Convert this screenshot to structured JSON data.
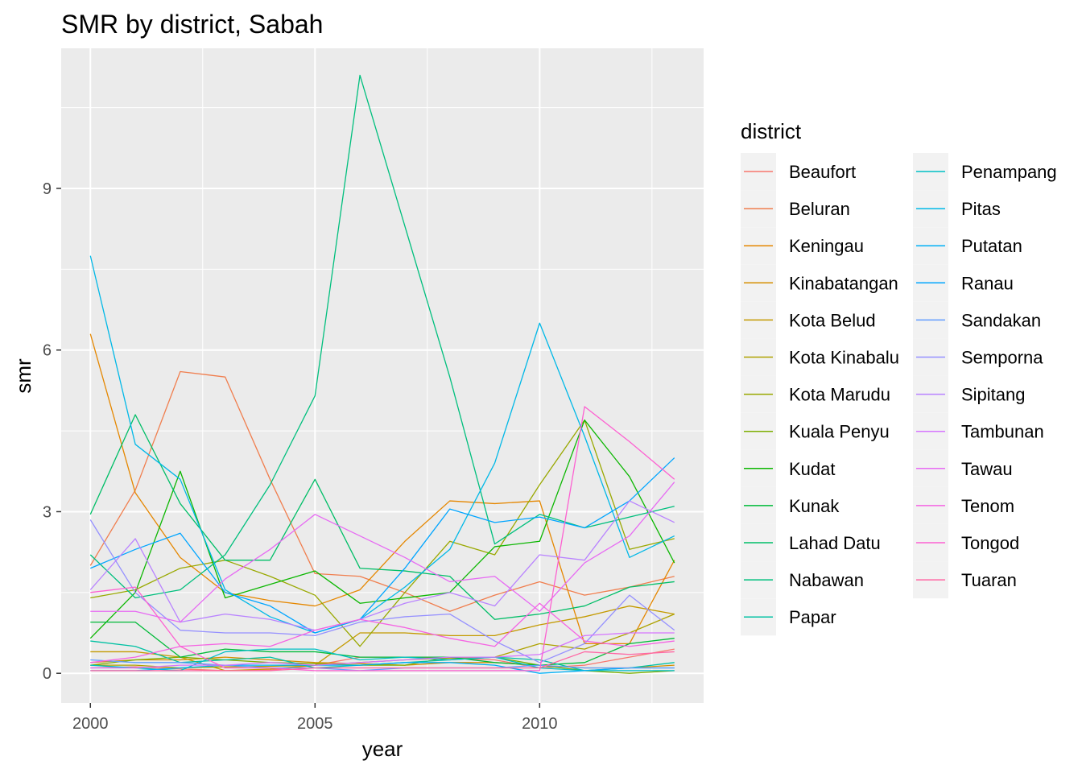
{
  "chart_data": {
    "type": "line",
    "title": "SMR by district, Sabah",
    "xlabel": "year",
    "ylabel": "smr",
    "xlim": [
      1999.35,
      2013.65
    ],
    "ylim": [
      -0.55,
      11.6
    ],
    "x_ticks": [
      2000,
      2005,
      2010
    ],
    "y_ticks": [
      0,
      3,
      6,
      9
    ],
    "grid": true,
    "legend": {
      "title": "district",
      "position": "right",
      "columns": 2
    },
    "x": [
      2000,
      2001,
      2002,
      2003,
      2004,
      2005,
      2006,
      2007,
      2008,
      2009,
      2010,
      2011,
      2012,
      2013
    ],
    "series": [
      {
        "name": "Beaufort",
        "color": "#F8766D",
        "values": [
          0.1,
          0.12,
          0.08,
          0.05,
          0.06,
          0.15,
          0.3,
          0.3,
          0.28,
          0.25,
          0.1,
          0.15,
          0.3,
          0.45
        ]
      },
      {
        "name": "Beluran",
        "color": "#F07E4E",
        "values": [
          2.0,
          3.4,
          5.6,
          5.5,
          3.6,
          1.85,
          1.8,
          1.5,
          1.15,
          1.45,
          1.7,
          1.45,
          1.6,
          1.8
        ]
      },
      {
        "name": "Keningau",
        "color": "#E58700",
        "values": [
          6.3,
          3.35,
          2.15,
          1.5,
          1.35,
          1.25,
          1.55,
          2.45,
          3.2,
          3.15,
          3.2,
          0.55,
          0.55,
          2.1
        ]
      },
      {
        "name": "Kinabatangan",
        "color": "#D58F00",
        "values": [
          0.2,
          0.25,
          0.25,
          0.3,
          0.25,
          0.2,
          0.18,
          0.15,
          0.2,
          0.2,
          0.15,
          0.1,
          0.1,
          0.15
        ]
      },
      {
        "name": "Kota Belud",
        "color": "#C49A00",
        "values": [
          0.4,
          0.4,
          0.3,
          0.05,
          0.08,
          0.15,
          0.75,
          0.75,
          0.7,
          0.7,
          0.9,
          1.05,
          1.25,
          1.1
        ]
      },
      {
        "name": "Kota Kinabalu",
        "color": "#AEA200",
        "values": [
          0.15,
          0.15,
          0.1,
          0.12,
          0.13,
          0.15,
          0.2,
          0.25,
          0.28,
          0.3,
          0.55,
          0.45,
          0.75,
          1.1
        ]
      },
      {
        "name": "Kota Marudu",
        "color": "#99A800",
        "values": [
          1.4,
          1.55,
          1.95,
          2.1,
          1.8,
          1.45,
          0.5,
          1.5,
          2.45,
          2.2,
          3.5,
          4.7,
          2.3,
          2.5
        ]
      },
      {
        "name": "Kuala Penyu",
        "color": "#7CAE00",
        "values": [
          0.15,
          0.25,
          0.3,
          0.25,
          0.2,
          0.18,
          0.15,
          0.15,
          0.3,
          0.3,
          0.15,
          0.05,
          0.0,
          0.05
        ]
      },
      {
        "name": "Kudat",
        "color": "#0CB702",
        "values": [
          0.65,
          1.5,
          3.75,
          1.4,
          1.65,
          1.9,
          1.3,
          1.4,
          1.5,
          2.35,
          2.45,
          4.7,
          3.65,
          2.05
        ]
      },
      {
        "name": "Kunak",
        "color": "#00BA38",
        "values": [
          0.95,
          0.95,
          0.3,
          0.45,
          0.4,
          0.4,
          0.3,
          0.3,
          0.3,
          0.2,
          0.15,
          0.2,
          0.55,
          0.65
        ]
      },
      {
        "name": "Lahad Datu",
        "color": "#00BE67",
        "values": [
          2.95,
          4.8,
          3.15,
          2.1,
          2.1,
          3.6,
          1.95,
          1.9,
          1.8,
          1.0,
          1.1,
          1.25,
          1.6,
          1.7
        ]
      },
      {
        "name": "Nabawan",
        "color": "#00BF7D",
        "values": [
          2.2,
          1.4,
          1.55,
          2.2,
          3.5,
          5.15,
          11.1,
          8.3,
          5.5,
          2.4,
          2.95,
          2.7,
          2.9,
          3.1
        ]
      },
      {
        "name": "Papar",
        "color": "#00C1A3",
        "values": [
          0.6,
          0.5,
          0.2,
          0.25,
          0.3,
          0.1,
          0.15,
          0.2,
          0.25,
          0.3,
          0.25,
          0.05,
          0.1,
          0.2
        ]
      },
      {
        "name": "Penampang",
        "color": "#00BFC4",
        "values": [
          0.15,
          0.1,
          0.05,
          0.4,
          0.45,
          0.45,
          0.25,
          0.3,
          0.25,
          0.3,
          0.1,
          0.05,
          0.05,
          0.05
        ]
      },
      {
        "name": "Pitas",
        "color": "#00B8E7",
        "values": [
          7.75,
          4.25,
          3.6,
          1.55,
          1.05,
          0.75,
          1.0,
          1.6,
          2.3,
          3.9,
          6.5,
          4.4,
          2.15,
          2.55
        ]
      },
      {
        "name": "Putatan",
        "color": "#00B0F6",
        "values": [
          0.05,
          0.05,
          0.1,
          0.15,
          0.15,
          0.15,
          0.15,
          0.2,
          0.2,
          0.15,
          0.0,
          0.05,
          0.1,
          0.1
        ]
      },
      {
        "name": "Ranau",
        "color": "#00A5FF",
        "values": [
          1.95,
          2.3,
          2.6,
          1.5,
          1.25,
          0.75,
          1.0,
          1.95,
          3.05,
          2.8,
          2.9,
          2.7,
          3.2,
          4.0
        ]
      },
      {
        "name": "Sandakan",
        "color": "#619CFF",
        "values": [
          0.25,
          0.2,
          0.2,
          0.15,
          0.1,
          0.1,
          0.05,
          0.1,
          0.1,
          0.1,
          0.15,
          0.1,
          0.1,
          0.1
        ]
      },
      {
        "name": "Semporna",
        "color": "#9590FF",
        "values": [
          2.85,
          1.5,
          0.8,
          0.75,
          0.75,
          0.7,
          0.95,
          1.05,
          1.1,
          0.6,
          0.2,
          0.55,
          1.45,
          0.8
        ]
      },
      {
        "name": "Sipitang",
        "color": "#B983FF",
        "values": [
          1.55,
          2.5,
          0.95,
          1.1,
          1.0,
          0.8,
          1.0,
          1.3,
          1.5,
          1.25,
          2.2,
          2.1,
          3.2,
          2.8
        ]
      },
      {
        "name": "Tambunan",
        "color": "#D575FE",
        "values": [
          0.1,
          0.1,
          0.15,
          0.15,
          0.2,
          0.15,
          0.2,
          0.25,
          0.3,
          0.3,
          0.35,
          0.7,
          0.75,
          0.75
        ]
      },
      {
        "name": "Tawau",
        "color": "#E76BF3",
        "values": [
          1.15,
          1.15,
          0.95,
          1.75,
          2.3,
          2.95,
          2.55,
          2.15,
          1.7,
          1.8,
          1.15,
          2.05,
          2.55,
          3.55
        ]
      },
      {
        "name": "Tenom",
        "color": "#F564E3",
        "values": [
          0.2,
          0.3,
          0.5,
          0.55,
          0.5,
          0.8,
          1.0,
          0.85,
          0.65,
          0.5,
          1.3,
          0.6,
          0.5,
          0.6
        ]
      },
      {
        "name": "Tongod",
        "color": "#FD61D1",
        "values": [
          1.5,
          1.6,
          0.5,
          0.1,
          0.1,
          0.05,
          0.05,
          0.05,
          0.05,
          0.05,
          0.05,
          4.95,
          4.3,
          3.6
        ]
      },
      {
        "name": "Tuaran",
        "color": "#FF67A4",
        "values": [
          0.05,
          0.05,
          0.05,
          0.05,
          0.05,
          0.1,
          0.1,
          0.1,
          0.1,
          0.1,
          0.1,
          0.4,
          0.35,
          0.4
        ]
      }
    ]
  }
}
